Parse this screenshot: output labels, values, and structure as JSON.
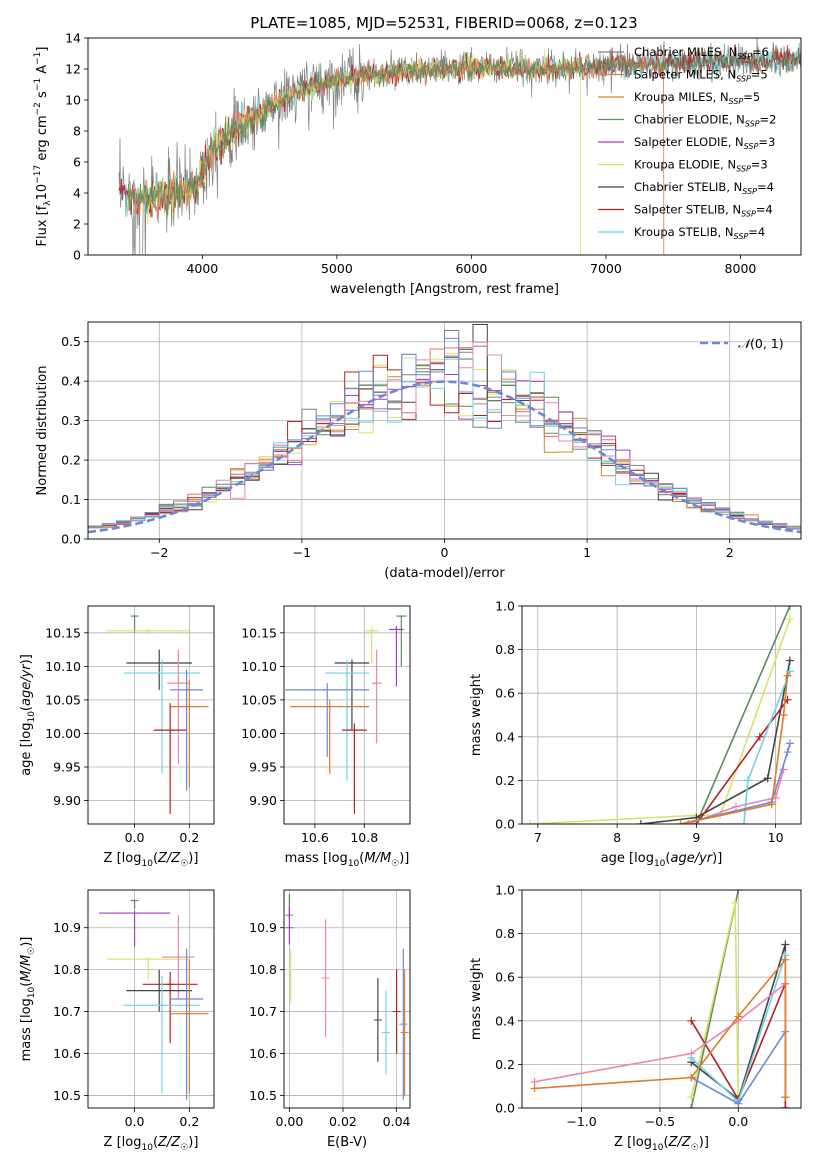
{
  "title": "PLATE=1085, MJD=52531, FIBERID=0068, z=0.123",
  "colors": {
    "Chabrier MILES": "#808080",
    "Salpeter MILES": "#e07b56",
    "Kroupa MILES": "#d08a2a",
    "Chabrier ELODIE": "#5e8a5e",
    "Salpeter ELODIE": "#a23fc4",
    "Kroupa ELODIE": "#d8e26a",
    "Chabrier STELIB": "#444444",
    "Salpeter STELIB": "#b22222",
    "Kroupa STELIB": "#6fd4e0",
    "extra_pink": "#e787b4",
    "extra_blue": "#6f88d6",
    "extra_orange": "#e07b2a"
  },
  "chart_data": [
    {
      "id": "spectrum",
      "type": "line",
      "xlabel": "wavelength [Angstrom, rest frame]",
      "ylabel": "Flux [f_λ10^-17 erg cm^-2 s^-1 A^-1]",
      "xlim": [
        3150,
        8450
      ],
      "ylim": [
        0,
        14
      ],
      "xticks": [
        4000,
        5000,
        6000,
        7000,
        8000
      ],
      "yticks": [
        0,
        2,
        4,
        6,
        8,
        10,
        12,
        14
      ],
      "grid": false,
      "legend_position": "right",
      "legend": [
        {
          "name": "Chabrier MILES",
          "label": "Chabrier MILES, N",
          "sub": "SSP",
          "tail": "=6"
        },
        {
          "name": "Salpeter MILES",
          "label": "Salpeter MILES, N",
          "sub": "SSP",
          "tail": "=5"
        },
        {
          "name": "Kroupa MILES",
          "label": "Kroupa MILES, N",
          "sub": "SSP",
          "tail": "=5"
        },
        {
          "name": "Chabrier ELODIE",
          "label": "Chabrier ELODIE, N",
          "sub": "SSP",
          "tail": "=2"
        },
        {
          "name": "Salpeter ELODIE",
          "label": "Salpeter ELODIE, N",
          "sub": "SSP",
          "tail": "=3"
        },
        {
          "name": "Kroupa ELODIE",
          "label": "Kroupa ELODIE, N",
          "sub": "SSP",
          "tail": "=3"
        },
        {
          "name": "Chabrier STELIB",
          "label": "Chabrier STELIB, N",
          "sub": "SSP",
          "tail": "=4"
        },
        {
          "name": "Salpeter STELIB",
          "label": "Salpeter STELIB, N",
          "sub": "SSP",
          "tail": "=4"
        },
        {
          "name": "Kroupa STELIB",
          "label": "Kroupa STELIB, N",
          "sub": "SSP",
          "tail": "=4"
        }
      ],
      "continuum": [
        [
          3380,
          3.9
        ],
        [
          3600,
          3.6
        ],
        [
          3800,
          4.0
        ],
        [
          3950,
          4.5
        ],
        [
          4100,
          7.2
        ],
        [
          4300,
          8.4
        ],
        [
          4500,
          9.6
        ],
        [
          4800,
          10.9
        ],
        [
          5200,
          11.6
        ],
        [
          5600,
          11.9
        ],
        [
          6000,
          12.1
        ],
        [
          6500,
          12.0
        ],
        [
          7000,
          12.2
        ],
        [
          7500,
          12.4
        ],
        [
          7900,
          12.5
        ],
        [
          8200,
          12.6
        ],
        [
          8450,
          12.6
        ]
      ],
      "model_drops": [
        {
          "name": "Kroupa ELODIE",
          "x": 6810
        },
        {
          "name": "Salpeter MILES",
          "x": 7430
        },
        {
          "name": "Chabrier MILES",
          "x": 7430
        }
      ]
    },
    {
      "id": "residuals",
      "type": "histogram",
      "xlabel": "(data-model)/error",
      "ylabel": "Normed distribution",
      "xlim": [
        -2.5,
        2.5
      ],
      "ylim": [
        0,
        0.55
      ],
      "xticks": [
        -2,
        -1,
        0,
        1,
        2
      ],
      "yticks": [
        0.0,
        0.1,
        0.2,
        0.3,
        0.4,
        0.5
      ],
      "grid": true,
      "legend_position": "top-right",
      "reference_label": "N(0, 1)",
      "reference": {
        "mean": 0,
        "sigma": 1
      },
      "bin_width": 0.1
    },
    {
      "id": "age_vs_Z",
      "type": "scatter",
      "xlabel": "Z [log10(Z/Z☉)]",
      "ylabel": "age [log10(age/yr)]",
      "xlim": [
        -0.17,
        0.29
      ],
      "ylim": [
        9.865,
        10.19
      ],
      "xticks": [
        0.0,
        0.2
      ],
      "yticks": [
        9.9,
        9.95,
        10.0,
        10.05,
        10.1,
        10.15
      ],
      "grid": true,
      "points": [
        {
          "name": "Chabrier ELODIE",
          "x": 0.0,
          "y": 10.175,
          "xerr": 0.01,
          "yerr": [
            0.025,
            0.001
          ]
        },
        {
          "name": "Kroupa ELODIE",
          "x": 0.05,
          "y": 10.153,
          "xerr": 0.15,
          "yerr": [
            0.005,
            0.003
          ]
        },
        {
          "name": "Chabrier STELIB",
          "x": 0.09,
          "y": 10.105,
          "xerr": 0.12,
          "yerr": [
            0.04,
            0.02
          ]
        },
        {
          "name": "Kroupa STELIB",
          "x": 0.1,
          "y": 10.09,
          "xerr": 0.14,
          "yerr": [
            0.15,
            0.02
          ]
        },
        {
          "name": "extra_pink",
          "x": 0.16,
          "y": 10.075,
          "xerr": 0.04,
          "yerr": [
            0.12,
            0.05
          ]
        },
        {
          "name": "extra_blue",
          "x": 0.19,
          "y": 10.065,
          "xerr": 0.06,
          "yerr": [
            0.15,
            0.03
          ]
        },
        {
          "name": "extra_orange",
          "x": 0.2,
          "y": 10.04,
          "xerr": 0.07,
          "yerr": [
            0.12,
            0.04
          ]
        },
        {
          "name": "Salpeter STELIB",
          "x": 0.13,
          "y": 10.005,
          "xerr": 0.06,
          "yerr": [
            0.125,
            0.04
          ]
        }
      ]
    },
    {
      "id": "age_vs_mass",
      "type": "scatter",
      "xlabel": "mass [log10(M/M☉)]",
      "ylabel": "",
      "xlim": [
        10.475,
        10.985
      ],
      "ylim": [
        9.865,
        10.19
      ],
      "xticks": [
        10.6,
        10.8
      ],
      "yticks": [
        9.9,
        9.95,
        10.0,
        10.05,
        10.1,
        10.15
      ],
      "grid": true,
      "points": [
        {
          "name": "Chabrier ELODIE",
          "x": 10.95,
          "y": 10.175,
          "xerr": 0.02,
          "yerr": [
            0.075,
            0.001
          ]
        },
        {
          "name": "Kroupa ELODIE",
          "x": 10.83,
          "y": 10.153,
          "xerr": 0.03,
          "yerr": [
            0.05,
            0.005
          ]
        },
        {
          "name": "Salpeter ELODIE",
          "x": 10.93,
          "y": 10.155,
          "xerr": 0.03,
          "yerr": [
            0.085,
            0.005
          ]
        },
        {
          "name": "Chabrier STELIB",
          "x": 10.75,
          "y": 10.105,
          "xerr": 0.07,
          "yerr": [
            0.1,
            0.005
          ]
        },
        {
          "name": "Kroupa STELIB",
          "x": 10.73,
          "y": 10.09,
          "xerr": 0.09,
          "yerr": [
            0.16,
            0.02
          ]
        },
        {
          "name": "extra_pink",
          "x": 10.85,
          "y": 10.075,
          "xerr": 0.02,
          "yerr": [
            0.09,
            0.05
          ]
        },
        {
          "name": "extra_blue",
          "x": 10.65,
          "y": 10.065,
          "xerr": 0.17,
          "yerr": [
            0.1,
            0.01
          ]
        },
        {
          "name": "extra_orange",
          "x": 10.66,
          "y": 10.04,
          "xerr": 0.16,
          "yerr": [
            0.1,
            0.01
          ]
        },
        {
          "name": "Salpeter STELIB",
          "x": 10.76,
          "y": 10.005,
          "xerr": 0.05,
          "yerr": [
            0.125,
            0.01
          ]
        }
      ]
    },
    {
      "id": "weight_vs_age",
      "type": "line",
      "xlabel": "age [log10(age/yr)]",
      "ylabel": "mass weight",
      "xlim": [
        6.8,
        10.32
      ],
      "ylim": [
        0,
        1.0
      ],
      "xticks": [
        7,
        8,
        9,
        10
      ],
      "yticks": [
        0.0,
        0.2,
        0.4,
        0.6,
        0.8,
        1.0
      ],
      "grid": true,
      "series": [
        {
          "name": "Chabrier ELODIE",
          "x": [
            9.0,
            10.18
          ],
          "y": [
            0.0,
            1.0
          ]
        },
        {
          "name": "Kroupa ELODIE",
          "x": [
            6.9,
            9.0,
            9.3,
            10.18
          ],
          "y": [
            0.0,
            0.04,
            0.04,
            0.94
          ]
        },
        {
          "name": "Chabrier STELIB",
          "x": [
            8.3,
            9.0,
            9.9,
            10.18
          ],
          "y": [
            0.0,
            0.03,
            0.21,
            0.75
          ]
        },
        {
          "name": "Salpeter STELIB",
          "x": [
            8.9,
            9.0,
            9.8,
            10.15
          ],
          "y": [
            0.0,
            0.0,
            0.4,
            0.57
          ]
        },
        {
          "name": "Kroupa STELIB",
          "x": [
            8.9,
            9.6,
            9.65,
            10.18
          ],
          "y": [
            0.0,
            0.0,
            0.2,
            0.7
          ]
        },
        {
          "name": "extra_pink",
          "x": [
            8.9,
            9.5,
            10.0,
            10.1
          ],
          "y": [
            0.0,
            0.08,
            0.12,
            0.25
          ]
        },
        {
          "name": "extra_blue",
          "x": [
            8.8,
            9.95,
            10.15,
            10.18
          ],
          "y": [
            0.0,
            0.1,
            0.33,
            0.37
          ]
        },
        {
          "name": "extra_orange",
          "x": [
            8.8,
            9.95,
            10.1,
            10.15
          ],
          "y": [
            0.0,
            0.09,
            0.5,
            0.68
          ]
        }
      ]
    },
    {
      "id": "mass_vs_Z",
      "type": "scatter",
      "xlabel": "Z [log10(Z/Z☉)]",
      "ylabel": "mass [log10(M/M☉)]",
      "xlim": [
        -0.17,
        0.29
      ],
      "ylim": [
        10.47,
        10.99
      ],
      "xticks": [
        0.0,
        0.2
      ],
      "yticks": [
        10.5,
        10.6,
        10.7,
        10.8,
        10.9
      ],
      "grid": true,
      "points": [
        {
          "name": "Chabrier ELODIE",
          "x": 0.0,
          "y": 10.965,
          "xerr": 0.01,
          "yerr": [
            0.02,
            0.001
          ]
        },
        {
          "name": "Salpeter ELODIE",
          "x": 0.0,
          "y": 10.935,
          "xerr": 0.13,
          "yerr": [
            0.08,
            0.005
          ]
        },
        {
          "name": "Kroupa ELODIE",
          "x": 0.05,
          "y": 10.825,
          "xerr": 0.15,
          "yerr": [
            0.05,
            0.005
          ]
        },
        {
          "name": "extra_pink",
          "x": 0.16,
          "y": 10.83,
          "xerr": 0.06,
          "yerr": [
            0.1,
            0.1
          ]
        },
        {
          "name": "Chabrier STELIB",
          "x": 0.09,
          "y": 10.75,
          "xerr": 0.12,
          "yerr": [
            0.05,
            0.05
          ]
        },
        {
          "name": "Salpeter STELIB",
          "x": 0.13,
          "y": 10.765,
          "xerr": 0.1,
          "yerr": [
            0.14,
            0.03
          ]
        },
        {
          "name": "Kroupa STELIB",
          "x": 0.1,
          "y": 10.715,
          "xerr": 0.14,
          "yerr": [
            0.21,
            0.07
          ]
        },
        {
          "name": "extra_blue",
          "x": 0.19,
          "y": 10.73,
          "xerr": 0.06,
          "yerr": [
            0.24,
            0.12
          ]
        },
        {
          "name": "extra_orange",
          "x": 0.2,
          "y": 10.695,
          "xerr": 0.07,
          "yerr": [
            0.19,
            0.13
          ]
        }
      ]
    },
    {
      "id": "mass_vs_ebv",
      "type": "scatter",
      "xlabel": "E(B-V)",
      "ylabel": "",
      "xlim": [
        -0.002,
        0.045
      ],
      "ylim": [
        10.47,
        10.99
      ],
      "xticks": [
        0.0,
        0.02,
        0.04
      ],
      "yticks": [
        10.5,
        10.6,
        10.7,
        10.8,
        10.9
      ],
      "grid": true,
      "points": [
        {
          "name": "Chabrier ELODIE",
          "x": 0.0,
          "y": 10.93,
          "yerr": [
            0.01,
            0.05
          ]
        },
        {
          "name": "Salpeter ELODIE",
          "x": 0.0,
          "y": 10.9,
          "yerr": [
            0.04,
            0.05
          ]
        },
        {
          "name": "Kroupa ELODIE",
          "x": 0.0005,
          "y": 10.8,
          "yerr": [
            0.08,
            0.05
          ]
        },
        {
          "name": "extra_pink",
          "x": 0.0135,
          "y": 10.78,
          "yerr": [
            0.14,
            0.14
          ]
        },
        {
          "name": "Chabrier STELIB",
          "x": 0.033,
          "y": 10.68,
          "yerr": [
            0.1,
            0.1
          ]
        },
        {
          "name": "Kroupa STELIB",
          "x": 0.036,
          "y": 10.65,
          "yerr": [
            0.1,
            0.1
          ]
        },
        {
          "name": "Salpeter STELIB",
          "x": 0.04,
          "y": 10.7,
          "yerr": [
            0.1,
            0.1
          ]
        },
        {
          "name": "extra_blue",
          "x": 0.0425,
          "y": 10.67,
          "yerr": [
            0.18,
            0.18
          ]
        },
        {
          "name": "extra_orange",
          "x": 0.043,
          "y": 10.65,
          "yerr": [
            0.15,
            0.15
          ]
        }
      ]
    },
    {
      "id": "weight_vs_Z",
      "type": "line",
      "xlabel": "Z [log10(Z/Z☉)]",
      "ylabel": "mass weight",
      "xlim": [
        -1.38,
        0.4
      ],
      "ylim": [
        0,
        1.0
      ],
      "xticks": [
        -1.0,
        -0.5,
        0.0
      ],
      "yticks": [
        0.0,
        0.2,
        0.4,
        0.6,
        0.8,
        1.0
      ],
      "grid": true,
      "series": [
        {
          "name": "Chabrier ELODIE",
          "x": [
            -0.3,
            0.0
          ],
          "y": [
            0.0,
            1.0
          ]
        },
        {
          "name": "Kroupa ELODIE",
          "x": [
            -0.3,
            -0.02,
            0.0
          ],
          "y": [
            0.05,
            0.94,
            0.0
          ]
        },
        {
          "name": "Chabrier STELIB",
          "x": [
            -0.3,
            0.0,
            0.3,
            0.3
          ],
          "y": [
            0.21,
            0.04,
            0.75,
            0.0
          ]
        },
        {
          "name": "Salpeter STELIB",
          "x": [
            -0.3,
            0.0,
            0.3,
            0.3
          ],
          "y": [
            0.4,
            0.04,
            0.57,
            0.0
          ]
        },
        {
          "name": "Kroupa STELIB",
          "x": [
            -0.3,
            0.0,
            0.3
          ],
          "y": [
            0.23,
            0.03,
            0.7
          ]
        },
        {
          "name": "extra_pink",
          "x": [
            -1.3,
            -0.3,
            0.0,
            0.3
          ],
          "y": [
            0.12,
            0.25,
            0.4,
            0.57
          ]
        },
        {
          "name": "extra_blue",
          "x": [
            -0.3,
            0.0,
            0.3,
            0.3
          ],
          "y": [
            0.14,
            0.02,
            0.35,
            0.05
          ]
        },
        {
          "name": "extra_orange",
          "x": [
            -1.3,
            -0.3,
            0.0,
            0.3,
            0.3
          ],
          "y": [
            0.09,
            0.14,
            0.42,
            0.68,
            0.05
          ]
        }
      ]
    }
  ]
}
